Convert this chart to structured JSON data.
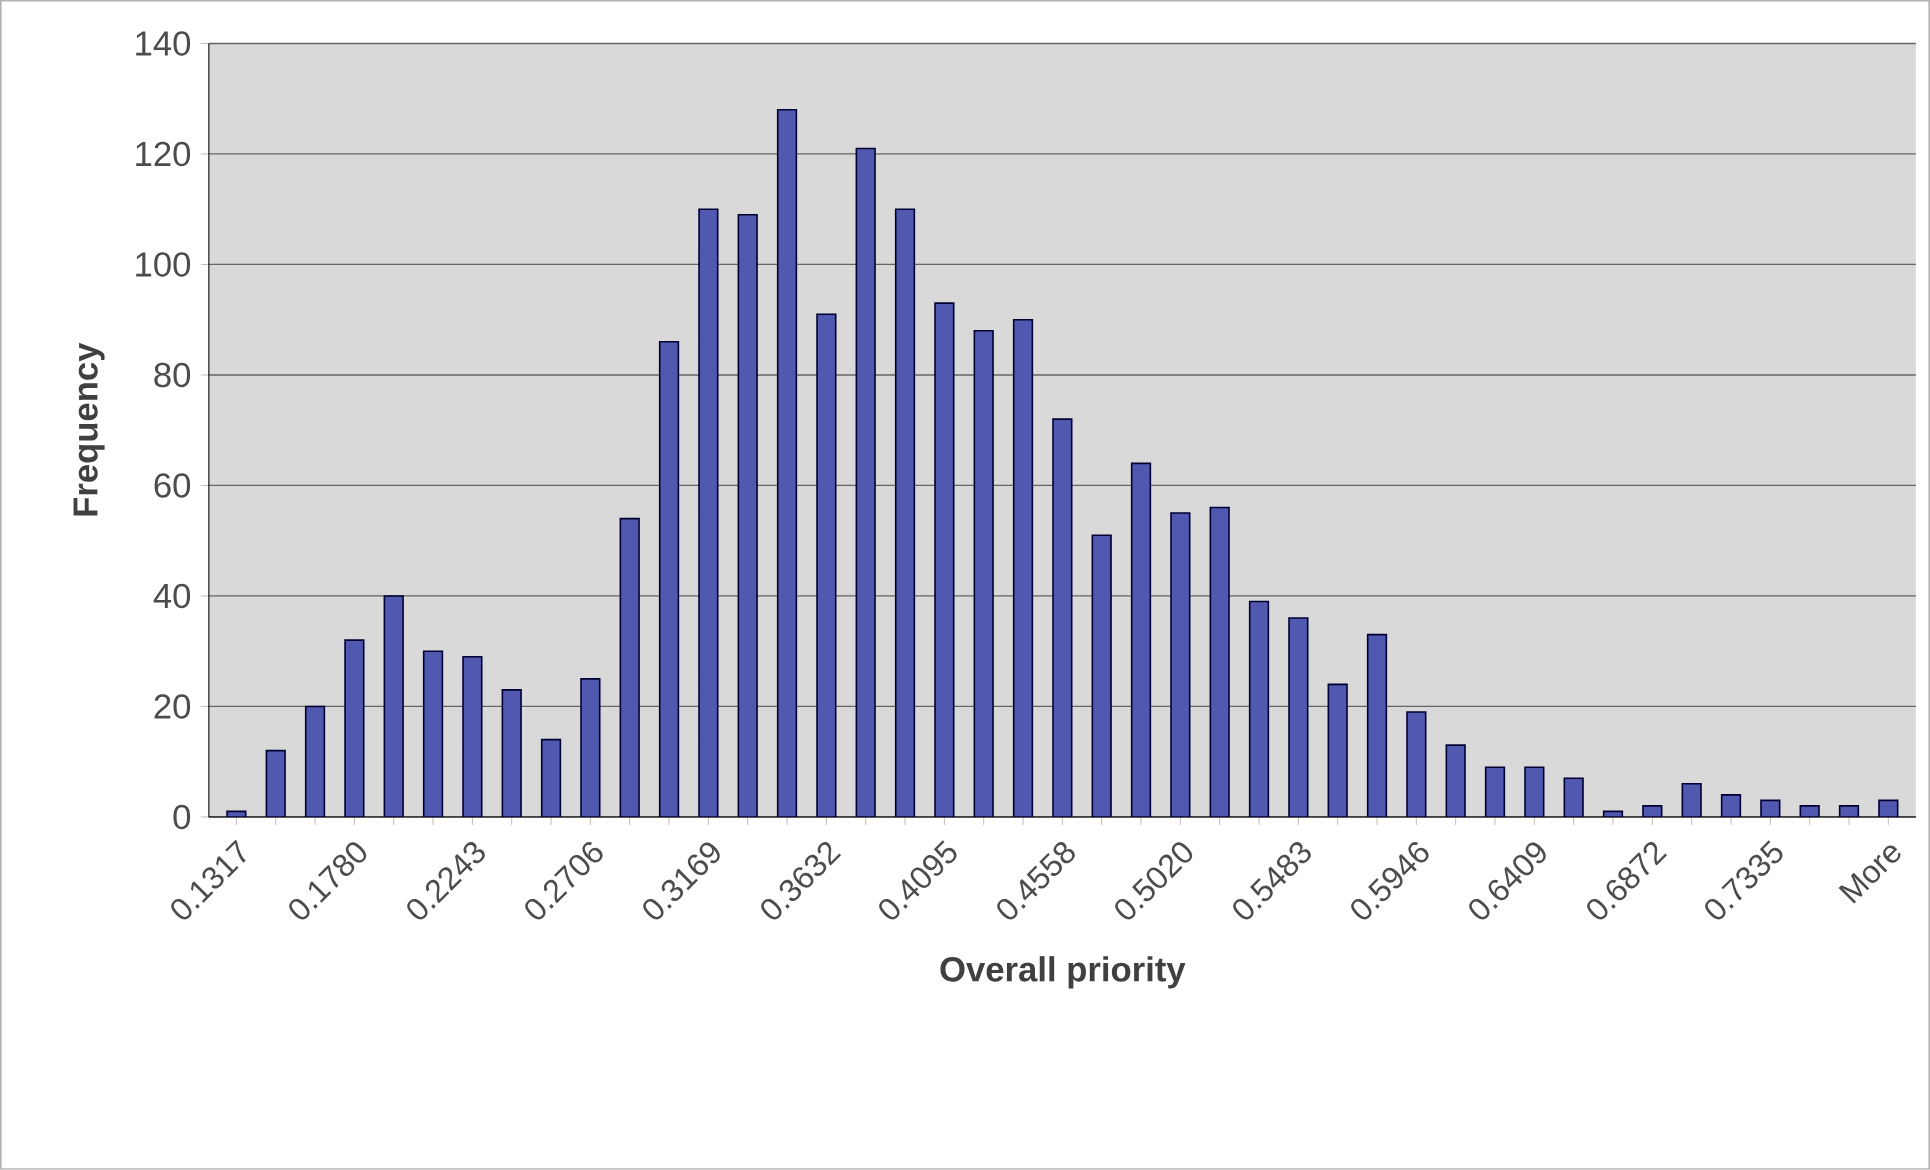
{
  "chart_data": {
    "type": "bar",
    "xlabel": "Overall priority",
    "ylabel": "Frequency",
    "categories": [
      "0.1317",
      null,
      null,
      "0.1780",
      null,
      null,
      "0.2243",
      null,
      null,
      "0.2706",
      null,
      null,
      "0.3169",
      null,
      null,
      "0.3632",
      null,
      null,
      "0.4095",
      null,
      null,
      "0.4558",
      null,
      null,
      "0.5020",
      null,
      null,
      "0.5483",
      null,
      null,
      "0.5946",
      null,
      null,
      "0.6409",
      null,
      null,
      "0.6872",
      null,
      null,
      "0.7335",
      null,
      null,
      "More"
    ],
    "values": [
      1,
      12,
      20,
      32,
      40,
      30,
      29,
      23,
      14,
      25,
      54,
      86,
      110,
      109,
      128,
      91,
      121,
      110,
      93,
      88,
      90,
      72,
      51,
      64,
      55,
      56,
      39,
      36,
      24,
      33,
      19,
      13,
      9,
      9,
      7,
      1,
      2,
      6,
      4,
      3,
      2,
      2,
      3
    ],
    "color": "#5058b0",
    "ylim": [
      0,
      140
    ],
    "yticks": [
      0,
      20,
      40,
      60,
      80,
      100,
      120,
      140
    ],
    "grid": "y"
  }
}
